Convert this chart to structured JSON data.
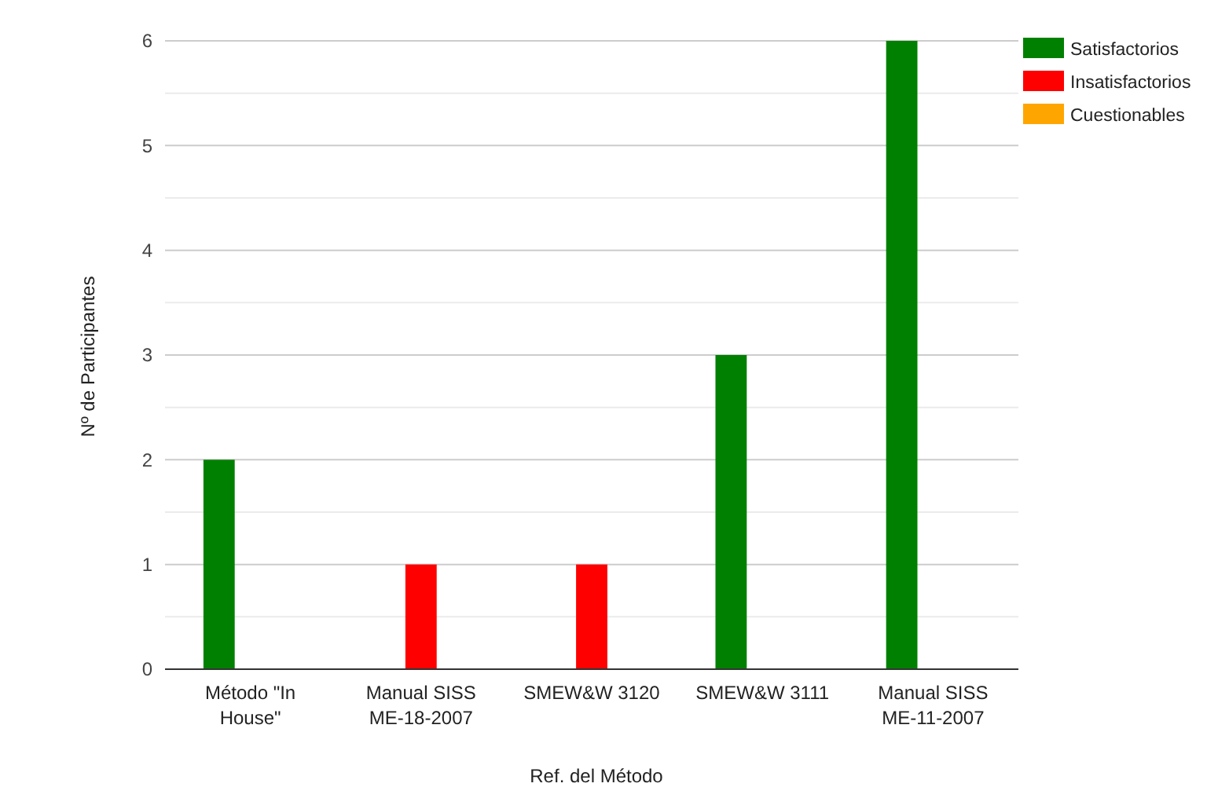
{
  "chart_data": {
    "type": "bar",
    "xlabel": "Ref. del Método",
    "ylabel": "Nº de Participantes",
    "categories": [
      "Método \"In House\"",
      "Manual SISS ME-18-2007",
      "SMEW&W 3120",
      "SMEW&W 3111",
      "Manual SISS ME-11-2007"
    ],
    "series": [
      {
        "name": "Satisfactorios",
        "color": "#008000",
        "values": [
          2,
          0,
          0,
          3,
          6
        ]
      },
      {
        "name": "Insatisfactorios",
        "color": "#ff0000",
        "values": [
          0,
          1,
          1,
          0,
          0
        ]
      },
      {
        "name": "Cuestionables",
        "color": "#ffa500",
        "values": [
          0,
          0,
          0,
          0,
          0
        ]
      }
    ],
    "ylim": [
      0,
      6
    ],
    "yticks": [
      0,
      1,
      2,
      3,
      4,
      5,
      6
    ],
    "grid": "y",
    "legend": "top right"
  }
}
